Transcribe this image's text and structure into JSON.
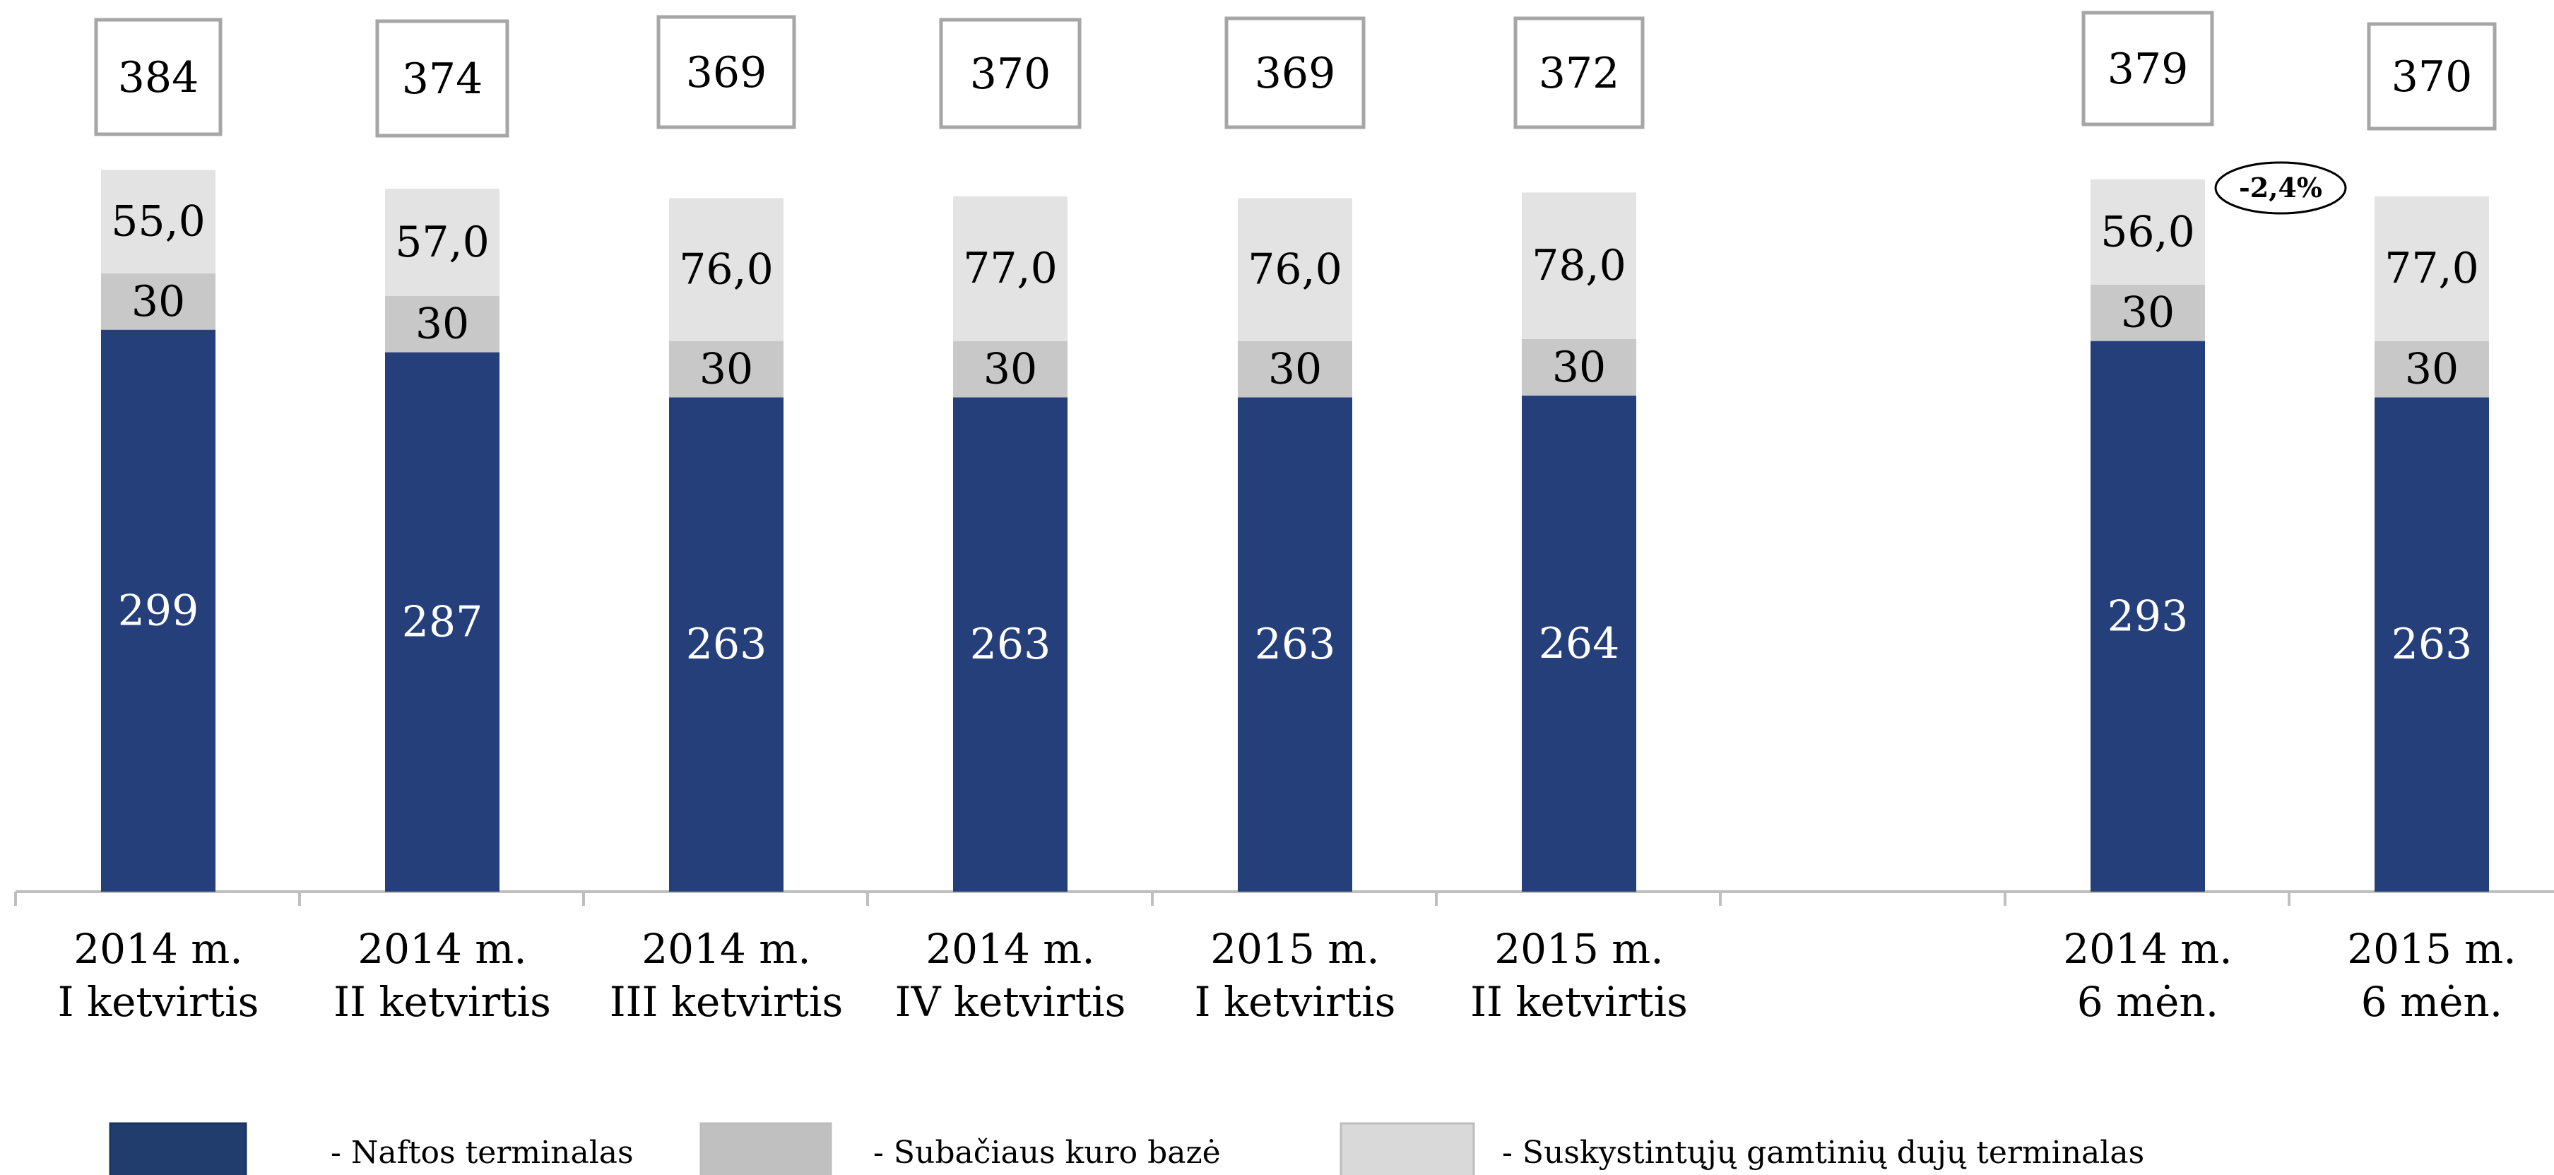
{
  "chart_data": {
    "type": "bar",
    "stacked": true,
    "categories": [
      [
        "2014 m.",
        "I ketvirtis"
      ],
      [
        "2014 m.",
        "II ketvirtis"
      ],
      [
        "2014 m.",
        "III ketvirtis"
      ],
      [
        "2014 m.",
        "IV ketvirtis"
      ],
      [
        "2015 m.",
        "I ketvirtis"
      ],
      [
        "2015 m.",
        "II ketvirtis"
      ],
      [
        "2014 m.",
        "6 mėn."
      ],
      [
        "2015 m.",
        "6 mėn."
      ]
    ],
    "series": [
      {
        "name": "- Naftos terminalas",
        "color": "#243f7a",
        "values": [
          299,
          287,
          263,
          263,
          263,
          264,
          293,
          263
        ],
        "labels": [
          "299",
          "287",
          "263",
          "263",
          "263",
          "264",
          "293",
          "263"
        ]
      },
      {
        "name": "- Subačiaus kuro bazė",
        "color": "#c8c8c8",
        "values": [
          30,
          30,
          30,
          30,
          30,
          30,
          30,
          30
        ],
        "labels": [
          "30",
          "30",
          "30",
          "30",
          "30",
          "30",
          "30",
          "30"
        ]
      },
      {
        "name": "- Suskystintųjų gamtinių dujų terminalas",
        "color": "#e3e3e3",
        "values": [
          55.0,
          57.0,
          76.0,
          77.0,
          76.0,
          78.0,
          56.0,
          77.0
        ],
        "labels": [
          "55,0",
          "57,0",
          "76,0",
          "77,0",
          "76,0",
          "78,0",
          "56,0",
          "77,0"
        ]
      }
    ],
    "totals": [
      "384",
      "374",
      "369",
      "370",
      "369",
      "372",
      "379",
      "370"
    ],
    "annotation": "-2,4%",
    "legend_position": "bottom",
    "grid": false
  },
  "legend_swatch_colors": [
    "#213d6e",
    "#c0c0c0",
    "#d9d9d9"
  ]
}
